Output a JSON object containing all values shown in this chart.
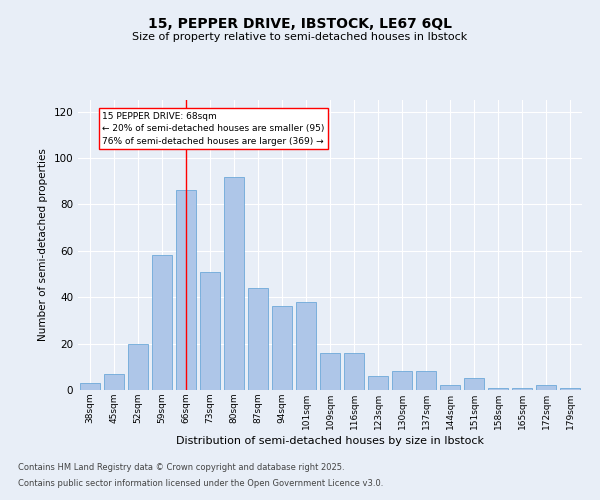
{
  "title1": "15, PEPPER DRIVE, IBSTOCK, LE67 6QL",
  "title2": "Size of property relative to semi-detached houses in Ibstock",
  "xlabel": "Distribution of semi-detached houses by size in Ibstock",
  "ylabel": "Number of semi-detached properties",
  "categories": [
    "38sqm",
    "45sqm",
    "52sqm",
    "59sqm",
    "66sqm",
    "73sqm",
    "80sqm",
    "87sqm",
    "94sqm",
    "101sqm",
    "109sqm",
    "116sqm",
    "123sqm",
    "130sqm",
    "137sqm",
    "144sqm",
    "151sqm",
    "158sqm",
    "165sqm",
    "172sqm",
    "179sqm"
  ],
  "values": [
    3,
    7,
    20,
    58,
    86,
    51,
    92,
    44,
    36,
    38,
    16,
    16,
    6,
    8,
    8,
    2,
    5,
    1,
    1,
    2,
    1
  ],
  "bar_color": "#aec6e8",
  "bar_edge_color": "#5a9fd4",
  "annotation_text": "15 PEPPER DRIVE: 68sqm\n← 20% of semi-detached houses are smaller (95)\n76% of semi-detached houses are larger (369) →",
  "vline_x_index": 4,
  "vline_color": "red",
  "ylim": [
    0,
    125
  ],
  "yticks": [
    0,
    20,
    40,
    60,
    80,
    100,
    120
  ],
  "background_color": "#e8eef7",
  "annotation_box_color": "white",
  "annotation_box_edge": "red",
  "footer1": "Contains HM Land Registry data © Crown copyright and database right 2025.",
  "footer2": "Contains public sector information licensed under the Open Government Licence v3.0."
}
